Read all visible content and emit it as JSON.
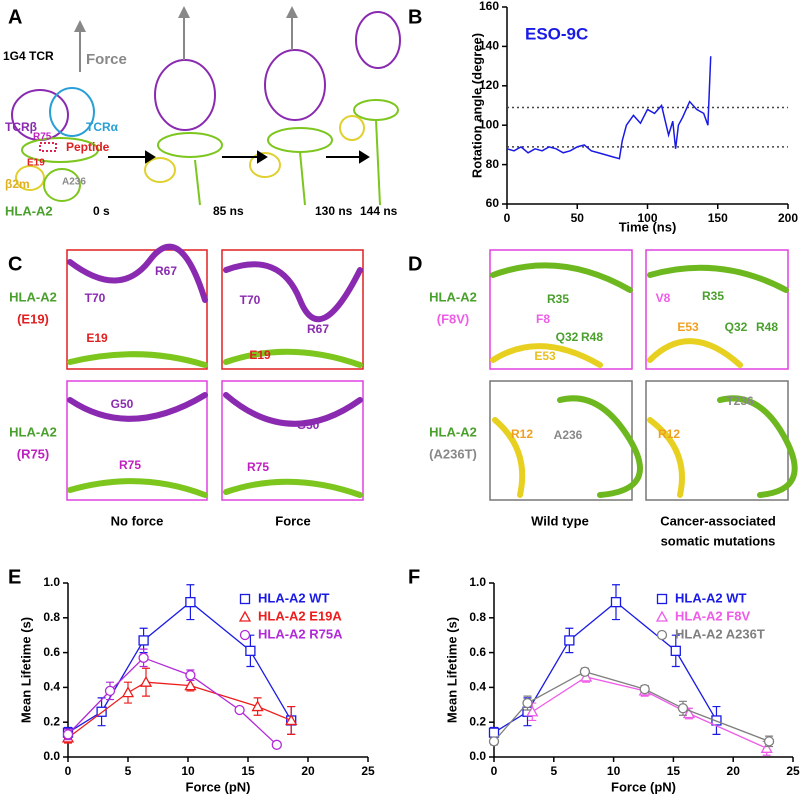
{
  "panel_labels": [
    "A",
    "B",
    "C",
    "D",
    "E",
    "F"
  ],
  "panel_a": {
    "tcr": "1G4 TCR",
    "force": "Force",
    "tcr_beta": "TCRβ",
    "tcr_alpha": "TCRα",
    "r75": "R75",
    "peptide": "Peptide",
    "e19": "E19",
    "b2m": "β2m",
    "a236": "A236",
    "hla": "HLA-A2",
    "times": [
      "0 s",
      "85 ns",
      "130 ns",
      "144 ns"
    ]
  },
  "panel_c": {
    "rows": [
      {
        "protein": "HLA-A2",
        "mutation": "(E19)"
      },
      {
        "protein": "HLA-A2",
        "mutation": "(R75)"
      }
    ],
    "boxes": [
      [
        "R67",
        "T70",
        "E19"
      ],
      [
        "T70",
        "R67",
        "E19"
      ],
      [
        "G50",
        "R75"
      ],
      [
        "R75",
        "G50"
      ]
    ],
    "captions": [
      "No force",
      "Force"
    ]
  },
  "panel_d": {
    "rows": [
      {
        "protein": "HLA-A2",
        "mutation": "(F8V)"
      },
      {
        "protein": "HLA-A2",
        "mutation": "(A236T)"
      }
    ],
    "boxes": [
      [
        "R35",
        "F8",
        "Q32",
        "R48",
        "E53"
      ],
      [
        "V8",
        "R35",
        "E53",
        "Q32",
        "R48"
      ],
      [
        "R12",
        "A236"
      ],
      [
        "T236",
        "R12"
      ]
    ],
    "captions": [
      "Wild type",
      "Cancer-associated",
      "somatic mutations"
    ]
  },
  "chart_data": [
    {
      "type": "line",
      "annotation": "ESO-9C",
      "xlabel": "Time (ns)",
      "ylabel": "Rotation angle (degree)",
      "x": [
        0,
        5,
        10,
        15,
        20,
        25,
        30,
        35,
        40,
        45,
        50,
        55,
        60,
        65,
        70,
        75,
        80,
        82,
        85,
        90,
        95,
        100,
        105,
        110,
        115,
        118,
        120,
        122,
        125,
        130,
        135,
        140,
        143,
        145
      ],
      "values": [
        88,
        87,
        89,
        86,
        88,
        87,
        89,
        88,
        86,
        87,
        89,
        90,
        87,
        86,
        85,
        84,
        83,
        92,
        100,
        105,
        101,
        108,
        106,
        110,
        95,
        102,
        88,
        100,
        104,
        112,
        108,
        106,
        100,
        135
      ],
      "color": "#1a1ae6",
      "reference_lines": [
        109,
        89
      ],
      "xlim": [
        0,
        200
      ],
      "xticks": [
        0,
        50,
        100,
        150,
        200
      ],
      "ylim": [
        60,
        160
      ],
      "yticks": [
        60,
        80,
        100,
        120,
        140,
        160
      ]
    },
    {
      "type": "scatter",
      "xlabel": "Force (pN)",
      "ylabel": "Mean Lifetime (s)",
      "legend": "upper right",
      "series": [
        {
          "name": "HLA-A2 WT",
          "color": "#1a1ae6",
          "marker": "square",
          "x": [
            0,
            2.8,
            6.3,
            10.2,
            15.2,
            18.6
          ],
          "values": [
            0.14,
            0.26,
            0.67,
            0.89,
            0.61,
            0.21
          ],
          "errors": [
            0.03,
            0.08,
            0.07,
            0.1,
            0.09,
            0.08
          ]
        },
        {
          "name": "HLA-A2 E19A",
          "color": "#ee1c1c",
          "marker": "triangle",
          "x": [
            0,
            5,
            6.5,
            10.2,
            15.8,
            18.6
          ],
          "values": [
            0.11,
            0.37,
            0.43,
            0.41,
            0.29,
            0.21
          ],
          "errors": [
            0.03,
            0.06,
            0.08,
            0.03,
            0.05,
            0.08
          ]
        },
        {
          "name": "HLA-A2 R75A",
          "color": "#b22ad8",
          "marker": "circle",
          "x": [
            0,
            3.5,
            6.3,
            10.2,
            14.3,
            17.4
          ],
          "values": [
            0.13,
            0.38,
            0.57,
            0.47,
            0.27,
            0.07
          ],
          "errors": [
            0.03,
            0.05,
            0.05,
            0.03,
            0.01,
            0.01
          ]
        }
      ],
      "xlim": [
        0,
        25
      ],
      "xticks": [
        0,
        5,
        10,
        15,
        20,
        25
      ],
      "ylim": [
        0,
        1
      ],
      "yticks": [
        {
          "value": 0,
          "label": "0.0"
        },
        {
          "value": 0.2,
          "label": "0.2"
        },
        {
          "value": 0.4,
          "label": "0.4"
        },
        {
          "value": 0.6,
          "label": "0.6"
        },
        {
          "value": 0.8,
          "label": "0.8"
        },
        {
          "value": 1,
          "label": "1.0"
        }
      ]
    },
    {
      "type": "scatter",
      "xlabel": "Force (pN)",
      "ylabel": "Mean Lifetime (s)",
      "legend": "upper right",
      "series": [
        {
          "name": "HLA-A2 WT",
          "color": "#1a1ae6",
          "marker": "square",
          "x": [
            0,
            2.8,
            6.3,
            10.2,
            15.2,
            18.6
          ],
          "values": [
            0.14,
            0.26,
            0.67,
            0.89,
            0.61,
            0.21
          ],
          "errors": [
            0.03,
            0.08,
            0.07,
            0.1,
            0.09,
            0.08
          ]
        },
        {
          "name": "HLA-A2 F8V",
          "color": "#ee5ce8",
          "marker": "triangle",
          "x": [
            3.2,
            7.7,
            12.6,
            16.3,
            22.8
          ],
          "values": [
            0.26,
            0.46,
            0.38,
            0.25,
            0.05
          ],
          "errors": [
            0.05,
            0.03,
            0.03,
            0.03,
            0.04
          ]
        },
        {
          "name": "HLA-A2 A236T",
          "color": "#7f7f7f",
          "marker": "circle",
          "x": [
            0,
            2.8,
            7.6,
            12.6,
            15.8,
            23
          ],
          "values": [
            0.09,
            0.31,
            0.49,
            0.39,
            0.28,
            0.09
          ],
          "errors": [
            0.02,
            0.04,
            0.02,
            0.02,
            0.04,
            0.03
          ]
        }
      ],
      "xlim": [
        0,
        25
      ],
      "xticks": [
        0,
        5,
        10,
        15,
        20,
        25
      ],
      "ylim": [
        0,
        1
      ],
      "yticks": [
        {
          "value": 0,
          "label": "0.0"
        },
        {
          "value": 0.2,
          "label": "0.2"
        },
        {
          "value": 0.4,
          "label": "0.4"
        },
        {
          "value": 0.6,
          "label": "0.6"
        },
        {
          "value": 0.8,
          "label": "0.8"
        },
        {
          "value": 1,
          "label": "1.0"
        }
      ]
    }
  ]
}
